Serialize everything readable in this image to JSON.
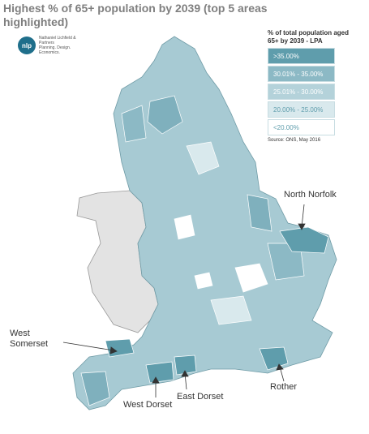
{
  "title": "Highest % of 65+ population by 2039 (top 5 areas highlighted)",
  "logo": {
    "mark": "nlp",
    "name": "Nathaniel Lichfield & Partners",
    "tagline": "Planning. Design. Economics."
  },
  "legend": {
    "title": "% of total population aged 65+ by 2039 - LPA",
    "items": [
      {
        "label": ">35.00%",
        "color": "#5f9dac"
      },
      {
        "label": "30.01% - 35.00%",
        "color": "#8cb9c5"
      },
      {
        "label": "25.01% - 30.00%",
        "color": "#b4d2da"
      },
      {
        "label": "20.00% - 25.00%",
        "color": "#d9e9ed"
      },
      {
        "label": "<20.00%",
        "color": "#ffffff"
      }
    ]
  },
  "source": "Source: ONS, May 2016",
  "labels": [
    "North Norfolk",
    "West Somerset",
    "West Dorset",
    "East Dorset",
    "Rother"
  ]
}
